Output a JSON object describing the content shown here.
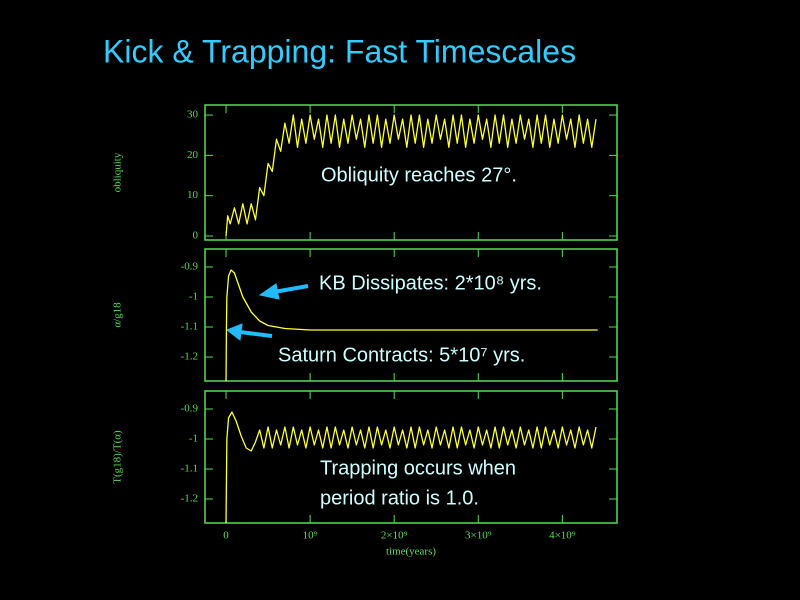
{
  "title": "Kick & Trapping: Fast Timescales",
  "chart_data": [
    {
      "type": "line",
      "ylabel": "obliquity",
      "xlim": [
        -250000000,
        4650000000
      ],
      "ylim": [
        -1,
        32.5
      ],
      "yticks": [
        0,
        10,
        20,
        30
      ],
      "annotations": [
        "Obliquity reaches 27°."
      ],
      "series": [
        {
          "color": "#ffff33",
          "x": [
            0,
            20000000.0,
            50000000.0,
            100000000.0,
            150000000.0,
            200000000.0,
            250000000.0,
            300000000.0,
            350000000.0,
            400000000.0,
            450000000.0,
            500000000.0,
            550000000.0,
            600000000.0,
            650000000.0,
            700000000.0,
            750000000.0,
            800000000.0,
            850000000.0,
            900000000.0,
            950000000.0,
            1000000000.0,
            1050000000.0,
            1100000000.0,
            1150000000.0,
            1200000000.0,
            1250000000.0,
            1300000000.0,
            1350000000.0,
            1400000000.0,
            1450000000.0,
            1500000000.0,
            1550000000.0,
            1600000000.0,
            1650000000.0,
            1700000000.0,
            1750000000.0,
            1800000000.0,
            1850000000.0,
            1900000000.0,
            1950000000.0,
            2000000000.0,
            2050000000.0,
            2100000000.0,
            2150000000.0,
            2200000000.0,
            2250000000.0,
            2300000000.0,
            2350000000.0,
            2400000000.0,
            2450000000.0,
            2500000000.0,
            2550000000.0,
            2600000000.0,
            2650000000.0,
            2700000000.0,
            2750000000.0,
            2800000000.0,
            2850000000.0,
            2900000000.0,
            2950000000.0,
            3000000000.0,
            3050000000.0,
            3100000000.0,
            3150000000.0,
            3200000000.0,
            3250000000.0,
            3300000000.0,
            3350000000.0,
            3400000000.0,
            3450000000.0,
            3500000000.0,
            3550000000.0,
            3600000000.0,
            3650000000.0,
            3700000000.0,
            3750000000.0,
            3800000000.0,
            3850000000.0,
            3900000000.0,
            3950000000.0,
            4000000000.0,
            4050000000.0,
            4100000000.0,
            4150000000.0,
            4200000000.0,
            4250000000.0,
            4300000000.0,
            4350000000.0,
            4400000000.0
          ],
          "values": [
            0,
            5,
            3,
            7,
            3,
            8,
            3,
            8,
            4,
            12,
            10,
            18,
            16,
            24,
            21,
            28,
            23,
            30,
            22,
            29,
            23,
            30,
            24,
            29,
            22,
            30,
            23,
            30,
            22,
            29,
            23,
            30,
            24,
            29,
            22,
            30,
            23,
            30,
            22,
            29,
            23,
            30,
            24,
            29,
            22,
            30,
            23,
            30,
            22,
            29,
            23,
            30,
            24,
            29,
            22,
            30,
            23,
            30,
            22,
            29,
            23,
            30,
            24,
            29,
            22,
            30,
            23,
            30,
            22,
            29,
            23,
            30,
            24,
            29,
            22,
            30,
            23,
            30,
            22,
            29,
            23,
            30,
            24,
            29,
            22,
            30,
            23,
            29,
            22,
            29
          ]
        }
      ]
    },
    {
      "type": "line",
      "ylabel": "α/g18",
      "xlim": [
        -250000000,
        4650000000
      ],
      "ylim": [
        -1.28,
        -0.84
      ],
      "yticks": [
        -0.9,
        -1,
        -1.1,
        -1.2
      ],
      "annotations": [
        "KB Dissipates: 2*10⁸ yrs.",
        "Saturn Contracts: 5*10⁷ yrs."
      ],
      "series": [
        {
          "color": "#ffff33",
          "x": [
            0,
            5000000.0,
            10000000.0,
            30000000.0,
            60000000.0,
            100000000.0,
            150000000.0,
            200000000.0,
            300000000.0,
            400000000.0,
            500000000.0,
            700000000.0,
            1000000000.0,
            4420000000.0
          ],
          "values": [
            -1.28,
            -1.1,
            -1.0,
            -0.93,
            -0.91,
            -0.92,
            -0.96,
            -1.0,
            -1.05,
            -1.08,
            -1.095,
            -1.105,
            -1.11,
            -1.11
          ]
        }
      ]
    },
    {
      "type": "line",
      "ylabel": "T(g18)/T(α)",
      "xlabel": "time(years)",
      "xlim": [
        -250000000,
        4650000000
      ],
      "ylim": [
        -1.28,
        -0.84
      ],
      "yticks": [
        -0.9,
        -1,
        -1.1,
        -1.2
      ],
      "xticks": [
        0,
        {
          "value": 1000000000,
          "label": "10⁹"
        },
        {
          "value": 2000000000,
          "label": "2×10⁹"
        },
        {
          "value": 3000000000,
          "label": "3×10⁹"
        },
        {
          "value": 4000000000,
          "label": "4×10⁹"
        }
      ],
      "annotations": [
        "Trapping occurs when",
        "period ratio is 1.0."
      ],
      "series": [
        {
          "color": "#ffff33",
          "x": [
            0,
            10000000.0,
            30000000.0,
            70000000.0,
            120000000.0,
            180000000.0,
            240000000.0,
            300000000.0,
            350000000.0,
            400000000.0,
            450000000.0,
            500000000.0,
            550000000.0,
            600000000.0,
            650000000.0,
            700000000.0,
            750000000.0,
            800000000.0,
            850000000.0,
            900000000.0,
            950000000.0,
            1000000000.0,
            1050000000.0,
            1100000000.0,
            1150000000.0,
            1200000000.0,
            1250000000.0,
            1300000000.0,
            1350000000.0,
            1400000000.0,
            1450000000.0,
            1500000000.0,
            1550000000.0,
            1600000000.0,
            1650000000.0,
            1700000000.0,
            1750000000.0,
            1800000000.0,
            1850000000.0,
            1900000000.0,
            1950000000.0,
            2000000000.0,
            2050000000.0,
            2100000000.0,
            2150000000.0,
            2200000000.0,
            2250000000.0,
            2300000000.0,
            2350000000.0,
            2400000000.0,
            2450000000.0,
            2500000000.0,
            2550000000.0,
            2600000000.0,
            2650000000.0,
            2700000000.0,
            2750000000.0,
            2800000000.0,
            2850000000.0,
            2900000000.0,
            2950000000.0,
            3000000000.0,
            3050000000.0,
            3100000000.0,
            3150000000.0,
            3200000000.0,
            3250000000.0,
            3300000000.0,
            3350000000.0,
            3400000000.0,
            3450000000.0,
            3500000000.0,
            3550000000.0,
            3600000000.0,
            3650000000.0,
            3700000000.0,
            3750000000.0,
            3800000000.0,
            3850000000.0,
            3900000000.0,
            3950000000.0,
            4000000000.0,
            4050000000.0,
            4100000000.0,
            4150000000.0,
            4200000000.0,
            4250000000.0,
            4300000000.0,
            4350000000.0,
            4400000000.0
          ],
          "values": [
            -1.28,
            -1.0,
            -0.93,
            -0.91,
            -0.94,
            -0.99,
            -1.03,
            -1.04,
            -1.01,
            -0.97,
            -1.03,
            -0.96,
            -1.03,
            -0.97,
            -1.02,
            -0.96,
            -1.03,
            -0.96,
            -1.02,
            -0.97,
            -1.03,
            -0.96,
            -1.02,
            -0.97,
            -1.03,
            -0.96,
            -1.03,
            -0.96,
            -1.02,
            -0.97,
            -1.03,
            -0.96,
            -1.02,
            -0.97,
            -1.03,
            -0.96,
            -1.03,
            -0.96,
            -1.02,
            -0.97,
            -1.03,
            -0.96,
            -1.02,
            -0.97,
            -1.03,
            -0.96,
            -1.03,
            -0.96,
            -1.02,
            -0.97,
            -1.03,
            -0.96,
            -1.02,
            -0.97,
            -1.03,
            -0.96,
            -1.03,
            -0.96,
            -1.02,
            -0.97,
            -1.03,
            -0.96,
            -1.02,
            -0.97,
            -1.03,
            -0.96,
            -1.03,
            -0.96,
            -1.02,
            -0.97,
            -1.03,
            -0.96,
            -1.02,
            -0.97,
            -1.03,
            -0.96,
            -1.03,
            -0.96,
            -1.02,
            -0.97,
            -1.03,
            -0.96,
            -1.02,
            -0.97,
            -1.03,
            -0.96,
            -1.02,
            -0.97,
            -1.03,
            -0.96
          ]
        }
      ]
    }
  ]
}
